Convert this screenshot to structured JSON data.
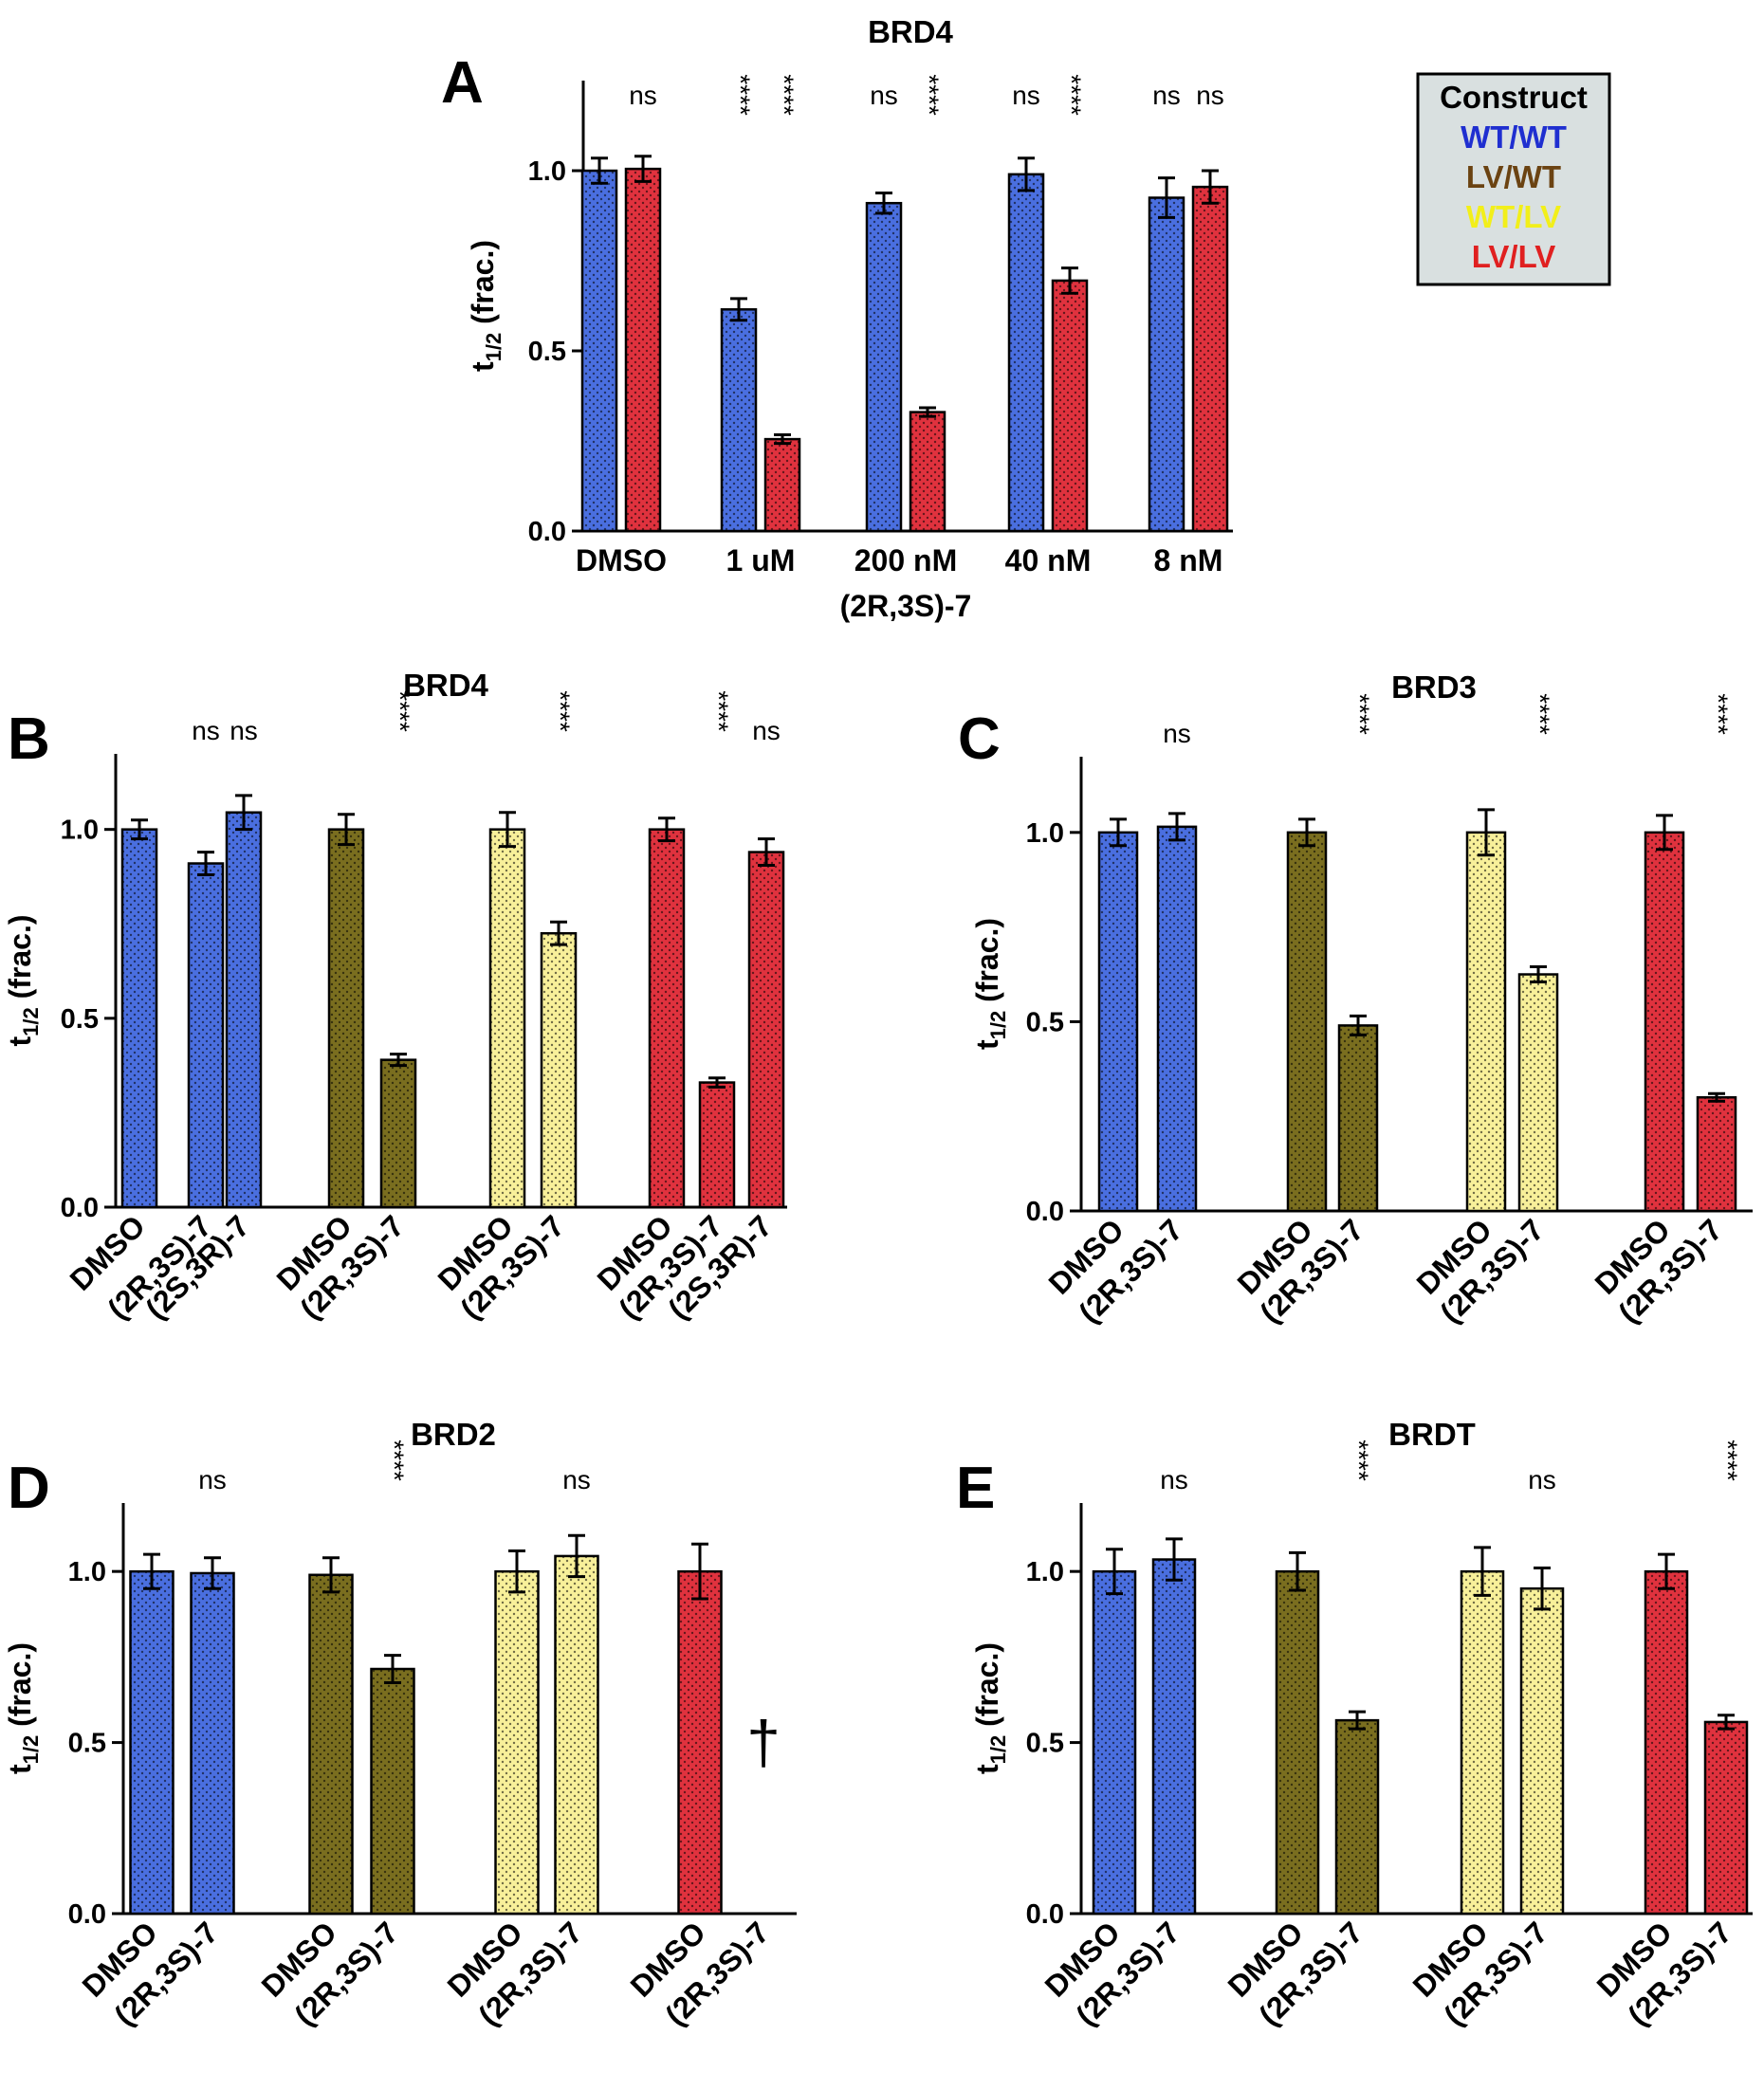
{
  "colors": {
    "WT/WT": "#4a6fe0",
    "LV/WT": "#7a6e1f",
    "WT/LV": "#f8f09a",
    "LV/LV": "#e0323e",
    "legend_bg": "#d9e0e0",
    "legend_WT/WT": "#1f2fd0",
    "legend_LV/WT": "#6b4312",
    "legend_WT/LV": "#f2ef1a",
    "legend_LV/LV": "#e02020"
  },
  "legend": {
    "title": "Construct",
    "entries": [
      "WT/WT",
      "LV/WT",
      "WT/LV",
      "LV/LV"
    ]
  },
  "chart_data": [
    {
      "panel": "A",
      "type": "bar",
      "title": "BRD4",
      "ylabel": "t1/2 (frac.)",
      "ylabel_main": "t",
      "ylabel_sub": "1/2",
      "ylabel_rest": " (frac.)",
      "ylim": [
        0,
        1.25
      ],
      "yticks": [
        "0.0",
        "0.5",
        "1.0"
      ],
      "x_group_labels": [
        "DMSO",
        "1 uM",
        "200 nM",
        "40 nM",
        "8 nM"
      ],
      "x_sublabel": "(2R,3S)-7",
      "groups": [
        {
          "label": "DMSO",
          "bars": [
            {
              "construct": "WT/WT",
              "value": 1.0,
              "error": 0.035
            },
            {
              "construct": "LV/LV",
              "value": 1.005,
              "error": 0.035,
              "sig": "ns"
            }
          ]
        },
        {
          "label": "1 uM",
          "bars": [
            {
              "construct": "WT/WT",
              "value": 0.615,
              "error": 0.03,
              "sig": "****"
            },
            {
              "construct": "LV/LV",
              "value": 0.255,
              "error": 0.012,
              "sig": "****"
            }
          ]
        },
        {
          "label": "200 nM",
          "bars": [
            {
              "construct": "WT/WT",
              "value": 0.91,
              "error": 0.028,
              "sig": "ns"
            },
            {
              "construct": "LV/LV",
              "value": 0.33,
              "error": 0.012,
              "sig": "****"
            }
          ]
        },
        {
          "label": "40 nM",
          "bars": [
            {
              "construct": "WT/WT",
              "value": 0.99,
              "error": 0.045,
              "sig": "ns"
            },
            {
              "construct": "LV/LV",
              "value": 0.695,
              "error": 0.035,
              "sig": "****"
            }
          ]
        },
        {
          "label": "8 nM",
          "bars": [
            {
              "construct": "WT/WT",
              "value": 0.925,
              "error": 0.055,
              "sig": "ns"
            },
            {
              "construct": "LV/LV",
              "value": 0.955,
              "error": 0.045,
              "sig": "ns"
            }
          ]
        }
      ]
    },
    {
      "panel": "B",
      "type": "bar",
      "title": "BRD4",
      "ylabel": "t1/2 (frac.)",
      "ylabel_main": "t",
      "ylabel_sub": "1/2",
      "ylabel_rest": " (frac.)",
      "ylim": [
        0,
        1.2
      ],
      "yticks": [
        "0.0",
        "0.5",
        "1.0"
      ],
      "groups": [
        {
          "construct": "WT/WT",
          "bars": [
            {
              "label": "DMSO",
              "value": 1.0,
              "error": 0.025
            },
            {
              "label": "(2R,3S)-7",
              "value": 0.91,
              "error": 0.03,
              "sig": "ns"
            },
            {
              "label": "(2S,3R)-7",
              "value": 1.045,
              "error": 0.045,
              "sig": "ns"
            }
          ]
        },
        {
          "construct": "LV/WT",
          "bars": [
            {
              "label": "DMSO",
              "value": 1.0,
              "error": 0.04
            },
            {
              "label": "(2R,3S)-7",
              "value": 0.39,
              "error": 0.015,
              "sig": "****"
            }
          ]
        },
        {
          "construct": "WT/LV",
          "bars": [
            {
              "label": "DMSO",
              "value": 1.0,
              "error": 0.045
            },
            {
              "label": "(2R,3S)-7",
              "value": 0.725,
              "error": 0.03,
              "sig": "****"
            }
          ]
        },
        {
          "construct": "LV/LV",
          "bars": [
            {
              "label": "DMSO",
              "value": 1.0,
              "error": 0.03
            },
            {
              "label": "(2R,3S)-7",
              "value": 0.33,
              "error": 0.012,
              "sig": "****"
            },
            {
              "label": "(2S,3R)-7",
              "value": 0.94,
              "error": 0.035,
              "sig": "ns"
            }
          ]
        }
      ]
    },
    {
      "panel": "C",
      "type": "bar",
      "title": "BRD3",
      "ylabel": "t1/2 (frac.)",
      "ylabel_main": "t",
      "ylabel_sub": "1/2",
      "ylabel_rest": " (frac.)",
      "ylim": [
        0,
        1.2
      ],
      "yticks": [
        "0.0",
        "0.5",
        "1.0"
      ],
      "groups": [
        {
          "construct": "WT/WT",
          "bars": [
            {
              "label": "DMSO",
              "value": 1.0,
              "error": 0.035
            },
            {
              "label": "(2R,3S)-7",
              "value": 1.015,
              "error": 0.035,
              "sig": "ns"
            }
          ]
        },
        {
          "construct": "LV/WT",
          "bars": [
            {
              "label": "DMSO",
              "value": 1.0,
              "error": 0.035
            },
            {
              "label": "(2R,3S)-7",
              "value": 0.49,
              "error": 0.025,
              "sig": "****"
            }
          ]
        },
        {
          "construct": "WT/LV",
          "bars": [
            {
              "label": "DMSO",
              "value": 1.0,
              "error": 0.06
            },
            {
              "label": "(2R,3S)-7",
              "value": 0.625,
              "error": 0.02,
              "sig": "****"
            }
          ]
        },
        {
          "construct": "LV/LV",
          "bars": [
            {
              "label": "DMSO",
              "value": 1.0,
              "error": 0.045
            },
            {
              "label": "(2R,3S)-7",
              "value": 0.3,
              "error": 0.01,
              "sig": "****"
            }
          ]
        }
      ]
    },
    {
      "panel": "D",
      "type": "bar",
      "title": "BRD2",
      "ylabel": "t1/2 (frac.)",
      "ylabel_main": "t",
      "ylabel_sub": "1/2",
      "ylabel_rest": " (frac.)",
      "ylim": [
        0,
        1.2
      ],
      "yticks": [
        "0.0",
        "0.5",
        "1.0"
      ],
      "groups": [
        {
          "construct": "WT/WT",
          "bars": [
            {
              "label": "DMSO",
              "value": 1.0,
              "error": 0.05
            },
            {
              "label": "(2R,3S)-7",
              "value": 0.995,
              "error": 0.045,
              "sig": "ns"
            }
          ]
        },
        {
          "construct": "LV/WT",
          "bars": [
            {
              "label": "DMSO",
              "value": 0.99,
              "error": 0.05
            },
            {
              "label": "(2R,3S)-7",
              "value": 0.715,
              "error": 0.04,
              "sig": "****"
            }
          ]
        },
        {
          "construct": "WT/LV",
          "bars": [
            {
              "label": "DMSO",
              "value": 1.0,
              "error": 0.06
            },
            {
              "label": "(2R,3S)-7",
              "value": 1.045,
              "error": 0.06,
              "sig": "ns"
            }
          ]
        },
        {
          "construct": "LV/LV",
          "bars": [
            {
              "label": "DMSO",
              "value": 1.0,
              "error": 0.08
            },
            {
              "label": "(2R,3S)-7",
              "value": null,
              "error": null,
              "marker": "†"
            }
          ]
        }
      ]
    },
    {
      "panel": "E",
      "type": "bar",
      "title": "BRDT",
      "ylabel": "t1/2 (frac.)",
      "ylabel_main": "t",
      "ylabel_sub": "1/2",
      "ylabel_rest": " (frac.)",
      "ylim": [
        0,
        1.2
      ],
      "yticks": [
        "0.0",
        "0.5",
        "1.0"
      ],
      "groups": [
        {
          "construct": "WT/WT",
          "bars": [
            {
              "label": "DMSO",
              "value": 1.0,
              "error": 0.065
            },
            {
              "label": "(2R,3S)-7",
              "value": 1.035,
              "error": 0.06,
              "sig": "ns"
            }
          ]
        },
        {
          "construct": "LV/WT",
          "bars": [
            {
              "label": "DMSO",
              "value": 1.0,
              "error": 0.055
            },
            {
              "label": "(2R,3S)-7",
              "value": 0.565,
              "error": 0.025,
              "sig": "****"
            }
          ]
        },
        {
          "construct": "WT/LV",
          "bars": [
            {
              "label": "DMSO",
              "value": 1.0,
              "error": 0.07
            },
            {
              "label": "(2R,3S)-7",
              "value": 0.95,
              "error": 0.06,
              "sig": "ns"
            }
          ]
        },
        {
          "construct": "LV/LV",
          "bars": [
            {
              "label": "DMSO",
              "value": 1.0,
              "error": 0.05
            },
            {
              "label": "(2R,3S)-7",
              "value": 0.56,
              "error": 0.02,
              "sig": "****"
            }
          ]
        }
      ]
    }
  ]
}
